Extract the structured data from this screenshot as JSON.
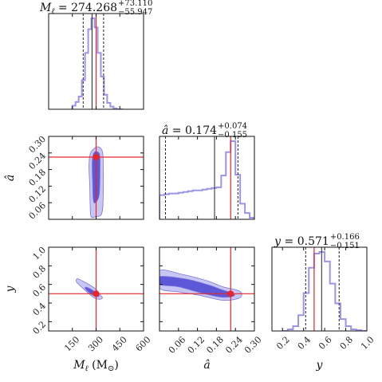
{
  "chart_data": {
    "type": "corner",
    "colors": {
      "histogram": "#9a95e8",
      "contour_inner": "#5d58d8",
      "contour_outer": "#c8c6f2",
      "contour_edge": "#7b77dd",
      "truth": "#e8262a",
      "median": "#222222",
      "quantile": "#222222"
    },
    "parameters": [
      {
        "key": "M",
        "title_lhs": "M",
        "title_sub": "ℓ",
        "title_eq": " = 274.268",
        "title_plus": "+73.110",
        "title_minus": "−55.947",
        "axis_label": "M",
        "axis_sub": "ℓ",
        "axis_unit": " (M",
        "axis_unit_sub": "⊙",
        "axis_unit_close": ")",
        "range": [
          0,
          600
        ],
        "ticks": [
          150,
          300,
          450,
          600
        ],
        "tick_labels": [
          "150",
          "300",
          "450",
          "600"
        ],
        "median": 274.268,
        "q_low": 218.321,
        "q_high": 347.378,
        "truth": 300
      },
      {
        "key": "a",
        "title_lhs": "â",
        "title_eq": " = 0.174",
        "title_plus": "+0.074",
        "title_minus": "−0.155",
        "axis_label": "â",
        "range": [
          0,
          0.3
        ],
        "ticks": [
          0.06,
          0.12,
          0.18,
          0.24,
          0.3
        ],
        "tick_labels": [
          "0.06",
          "0.12",
          "0.18",
          "0.24",
          "0.30"
        ],
        "median": 0.174,
        "q_low": 0.019,
        "q_high": 0.248,
        "truth": 0.225
      },
      {
        "key": "y",
        "title_lhs": "y",
        "title_eq": " = 0.571",
        "title_plus": "+0.166",
        "title_minus": "−0.151",
        "axis_label": "y",
        "range": [
          0.1,
          1.0
        ],
        "ticks": [
          0.2,
          0.4,
          0.6,
          0.8,
          1.0
        ],
        "tick_labels": [
          "0.2",
          "0.4",
          "0.6",
          "0.8",
          "1.0"
        ],
        "median": 0.571,
        "q_low": 0.42,
        "q_high": 0.737,
        "truth": 0.5
      }
    ],
    "histograms": [
      {
        "param": "M",
        "bins": [
          150,
          170,
          190,
          210,
          230,
          250,
          270,
          290,
          310,
          330,
          350,
          370,
          390,
          410,
          430,
          450,
          470
        ],
        "counts": [
          0.04,
          0.08,
          0.14,
          0.32,
          0.62,
          0.88,
          1.0,
          0.9,
          0.62,
          0.36,
          0.16,
          0.07,
          0.03,
          0.01,
          0.0,
          0.0
        ]
      },
      {
        "param": "a",
        "bins": [
          0.0,
          0.015,
          0.03,
          0.045,
          0.06,
          0.075,
          0.09,
          0.105,
          0.12,
          0.135,
          0.15,
          0.165,
          0.18,
          0.195,
          0.21,
          0.225,
          0.24,
          0.255,
          0.27,
          0.285,
          0.3
        ],
        "counts": [
          0.31,
          0.32,
          0.33,
          0.33,
          0.34,
          0.35,
          0.36,
          0.37,
          0.37,
          0.38,
          0.39,
          0.4,
          0.41,
          0.56,
          0.86,
          1.0,
          0.57,
          0.2,
          0.08,
          0.02
        ]
      },
      {
        "param": "y",
        "bins": [
          0.2,
          0.25,
          0.3,
          0.35,
          0.4,
          0.45,
          0.5,
          0.55,
          0.6,
          0.65,
          0.7,
          0.75,
          0.8,
          0.85,
          0.9,
          0.95,
          1.0
        ],
        "counts": [
          0.0,
          0.02,
          0.06,
          0.2,
          0.48,
          0.8,
          0.98,
          1.0,
          0.88,
          0.6,
          0.35,
          0.15,
          0.06,
          0.02,
          0.01,
          0.0
        ]
      }
    ],
    "contours": [
      {
        "x": "M",
        "y": "a",
        "outer": [
          [
            300,
            0.01
          ],
          [
            335,
            0.02
          ],
          [
            345,
            0.08
          ],
          [
            345,
            0.2
          ],
          [
            340,
            0.245
          ],
          [
            315,
            0.262
          ],
          [
            285,
            0.255
          ],
          [
            262,
            0.235
          ],
          [
            255,
            0.19
          ],
          [
            260,
            0.12
          ],
          [
            262,
            0.06
          ],
          [
            268,
            0.01
          ]
        ],
        "inner": [
          [
            295,
            0.06
          ],
          [
            320,
            0.09
          ],
          [
            325,
            0.19
          ],
          [
            322,
            0.235
          ],
          [
            300,
            0.245
          ],
          [
            282,
            0.235
          ],
          [
            275,
            0.2
          ],
          [
            278,
            0.13
          ],
          [
            282,
            0.07
          ]
        ]
      },
      {
        "x": "M",
        "y": "y",
        "outer": [
          [
            180,
            0.66
          ],
          [
            205,
            0.645
          ],
          [
            290,
            0.56
          ],
          [
            330,
            0.48
          ],
          [
            340,
            0.455
          ],
          [
            320,
            0.44
          ],
          [
            280,
            0.465
          ],
          [
            200,
            0.585
          ],
          [
            175,
            0.63
          ]
        ],
        "inner": [
          [
            240,
            0.57
          ],
          [
            290,
            0.525
          ],
          [
            320,
            0.48
          ],
          [
            300,
            0.47
          ],
          [
            265,
            0.5
          ],
          [
            232,
            0.555
          ]
        ]
      },
      {
        "x": "a",
        "y": "y",
        "outer": [
          [
            0,
            0.75
          ],
          [
            0.07,
            0.71
          ],
          [
            0.15,
            0.64
          ],
          [
            0.2,
            0.575
          ],
          [
            0.245,
            0.54
          ],
          [
            0.26,
            0.5
          ],
          [
            0.25,
            0.45
          ],
          [
            0.2,
            0.43
          ],
          [
            0.13,
            0.48
          ],
          [
            0.06,
            0.52
          ],
          [
            0,
            0.56
          ]
        ],
        "inner": [
          [
            0,
            0.685
          ],
          [
            0.08,
            0.66
          ],
          [
            0.15,
            0.6
          ],
          [
            0.2,
            0.54
          ],
          [
            0.235,
            0.5
          ],
          [
            0.23,
            0.47
          ],
          [
            0.19,
            0.465
          ],
          [
            0.13,
            0.51
          ],
          [
            0.06,
            0.575
          ],
          [
            0,
            0.6
          ]
        ]
      }
    ]
  }
}
